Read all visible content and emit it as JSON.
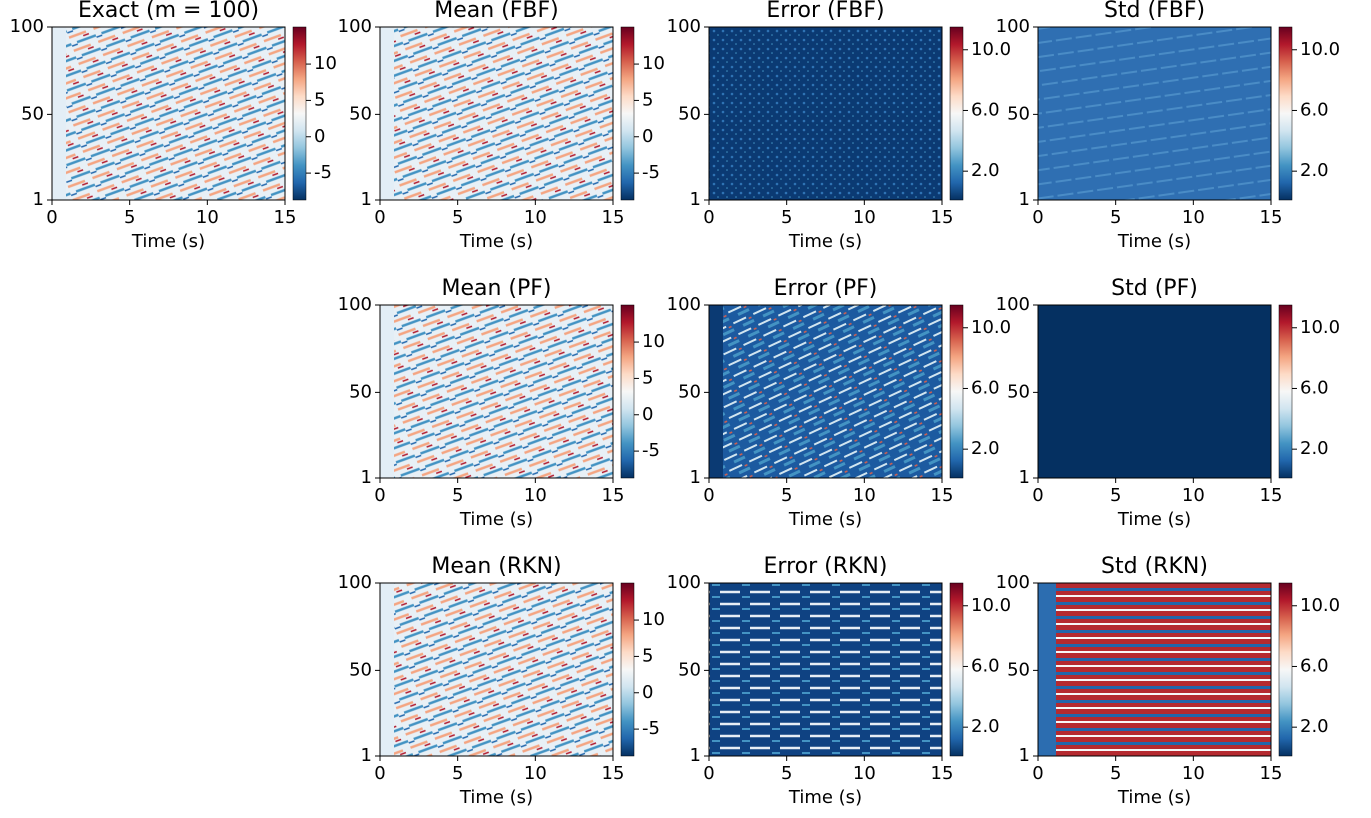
{
  "chart_data": [
    {
      "type": "heatmap",
      "title": "Exact (m = 100)",
      "xlabel": "Time (s)",
      "xlim": [
        0,
        15
      ],
      "xticks": [
        0,
        5,
        10,
        15
      ],
      "ylim": [
        1,
        100
      ],
      "yticks": [
        1,
        50,
        100
      ],
      "clim": [
        -8.7,
        15.1
      ],
      "cticks": [
        -5,
        0,
        5,
        10
      ],
      "cmap": "RdBu_r"
    },
    {
      "type": "heatmap",
      "title": "Mean (FBF)",
      "xlabel": "Time (s)",
      "xlim": [
        0,
        15
      ],
      "xticks": [
        0,
        5,
        10,
        15
      ],
      "ylim": [
        1,
        100
      ],
      "yticks": [
        1,
        50,
        100
      ],
      "clim": [
        -8.7,
        15.1
      ],
      "cticks": [
        -5,
        0,
        5,
        10
      ],
      "cmap": "RdBu_r"
    },
    {
      "type": "heatmap",
      "title": "Error (FBF)",
      "xlabel": "Time (s)",
      "xlim": [
        0,
        15
      ],
      "xticks": [
        0,
        5,
        10,
        15
      ],
      "ylim": [
        1,
        100
      ],
      "yticks": [
        1,
        50,
        100
      ],
      "clim": [
        0.1,
        11.5
      ],
      "cticks": [
        {
          "value": 2,
          "label": "2.0"
        },
        {
          "value": 6,
          "label": "6.0"
        },
        {
          "value": 10,
          "label": "10.0"
        }
      ],
      "cmap": "RdBu_r"
    },
    {
      "type": "heatmap",
      "title": "Std (FBF)",
      "xlabel": "Time (s)",
      "xlim": [
        0,
        15
      ],
      "xticks": [
        0,
        5,
        10,
        15
      ],
      "ylim": [
        1,
        100
      ],
      "yticks": [
        1,
        50,
        100
      ],
      "clim": [
        0.1,
        11.5
      ],
      "cticks": [
        {
          "value": 2,
          "label": "2.0"
        },
        {
          "value": 6,
          "label": "6.0"
        },
        {
          "value": 10,
          "label": "10.0"
        }
      ],
      "cmap": "RdBu_r"
    },
    {
      "type": "heatmap",
      "title": "Mean (PF)",
      "xlabel": "Time (s)",
      "xlim": [
        0,
        15
      ],
      "xticks": [
        0,
        5,
        10,
        15
      ],
      "ylim": [
        1,
        100
      ],
      "yticks": [
        1,
        50,
        100
      ],
      "clim": [
        -8.7,
        15.1
      ],
      "cticks": [
        -5,
        0,
        5,
        10
      ],
      "cmap": "RdBu_r"
    },
    {
      "type": "heatmap",
      "title": "Error (PF)",
      "xlabel": "Time (s)",
      "xlim": [
        0,
        15
      ],
      "xticks": [
        0,
        5,
        10,
        15
      ],
      "ylim": [
        1,
        100
      ],
      "yticks": [
        1,
        50,
        100
      ],
      "clim": [
        0.1,
        11.5
      ],
      "cticks": [
        {
          "value": 2,
          "label": "2.0"
        },
        {
          "value": 6,
          "label": "6.0"
        },
        {
          "value": 10,
          "label": "10.0"
        }
      ],
      "cmap": "RdBu_r"
    },
    {
      "type": "heatmap",
      "title": "Std (PF)",
      "xlabel": "Time (s)",
      "xlim": [
        0,
        15
      ],
      "xticks": [
        0,
        5,
        10,
        15
      ],
      "ylim": [
        1,
        100
      ],
      "yticks": [
        1,
        50,
        100
      ],
      "clim": [
        0.1,
        11.5
      ],
      "cticks": [
        {
          "value": 2,
          "label": "2.0"
        },
        {
          "value": 6,
          "label": "6.0"
        },
        {
          "value": 10,
          "label": "10.0"
        }
      ],
      "cmap": "RdBu_r"
    },
    {
      "type": "heatmap",
      "title": "Mean (RKN)",
      "xlabel": "Time (s)",
      "xlim": [
        0,
        15
      ],
      "xticks": [
        0,
        5,
        10,
        15
      ],
      "ylim": [
        1,
        100
      ],
      "yticks": [
        1,
        50,
        100
      ],
      "clim": [
        -8.7,
        15.1
      ],
      "cticks": [
        -5,
        0,
        5,
        10
      ],
      "cmap": "RdBu_r"
    },
    {
      "type": "heatmap",
      "title": "Error (RKN)",
      "xlabel": "Time (s)",
      "xlim": [
        0,
        15
      ],
      "xticks": [
        0,
        5,
        10,
        15
      ],
      "ylim": [
        1,
        100
      ],
      "yticks": [
        1,
        50,
        100
      ],
      "clim": [
        0.1,
        11.5
      ],
      "cticks": [
        {
          "value": 2,
          "label": "2.0"
        },
        {
          "value": 6,
          "label": "6.0"
        },
        {
          "value": 10,
          "label": "10.0"
        }
      ],
      "cmap": "RdBu_r"
    },
    {
      "type": "heatmap",
      "title": "Std (RKN)",
      "xlabel": "Time (s)",
      "xlim": [
        0,
        15
      ],
      "xticks": [
        0,
        5,
        10,
        15
      ],
      "ylim": [
        1,
        100
      ],
      "yticks": [
        1,
        50,
        100
      ],
      "clim": [
        0.1,
        11.5
      ],
      "cticks": [
        {
          "value": 2,
          "label": "2.0"
        },
        {
          "value": 6,
          "label": "6.0"
        },
        {
          "value": 10,
          "label": "10.0"
        }
      ],
      "cmap": "RdBu_r"
    }
  ]
}
